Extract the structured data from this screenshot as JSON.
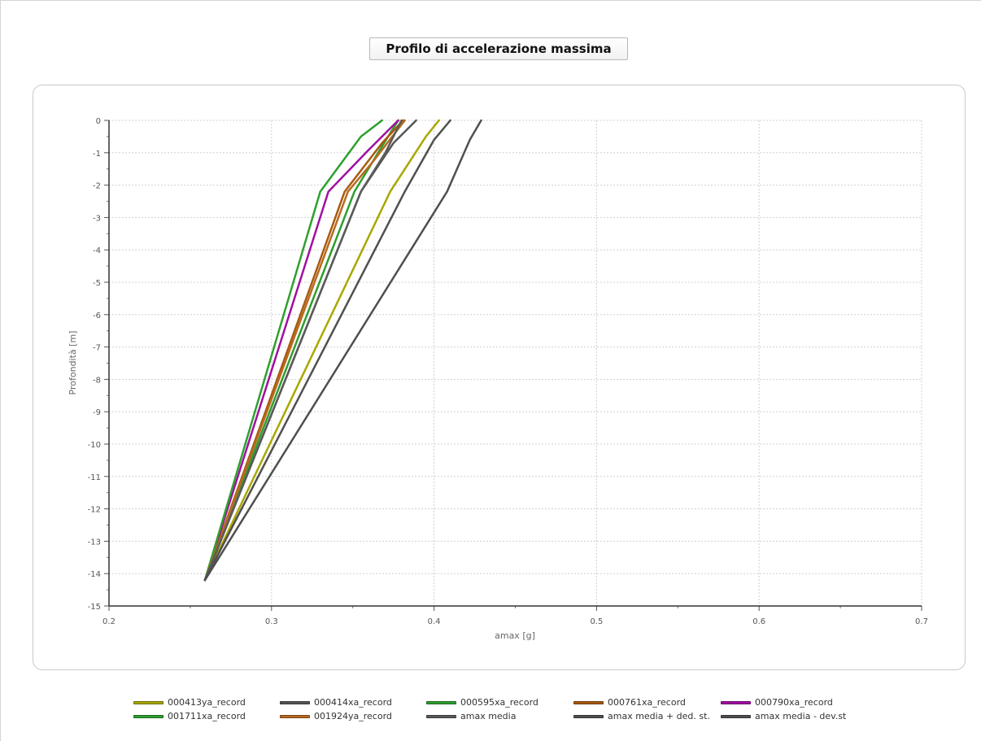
{
  "chart_data": {
    "type": "line",
    "title": "Profilo di accelerazione massima",
    "xlabel": "amax [g]",
    "ylabel": "Profondità [m]",
    "xlim": [
      0.2,
      0.7
    ],
    "ylim": [
      -15,
      0
    ],
    "x_ticks": [
      "0.2",
      "0.3",
      "0.4",
      "0.5",
      "0.6",
      "0.7"
    ],
    "y_ticks": [
      "0",
      "-1",
      "-2",
      "-3",
      "-4",
      "-5",
      "-6",
      "-7",
      "-8",
      "-9",
      "-10",
      "-11",
      "-12",
      "-13",
      "-14",
      "-15"
    ],
    "grid": true,
    "legend_position": "bottom",
    "series": [
      {
        "name": "000413ya_record",
        "color": "#a8a800",
        "x": [
          0.259,
          0.373,
          0.395,
          0.403
        ],
        "y": [
          -14.2,
          -2.2,
          -0.5,
          0
        ]
      },
      {
        "name": "000414xa_record",
        "color": "#555555",
        "x": [
          0.259,
          0.355,
          0.375,
          0.389
        ],
        "y": [
          -14.2,
          -2.2,
          -0.7,
          0
        ]
      },
      {
        "name": "000595xa_record",
        "color": "#2e9e2e",
        "x": [
          0.259,
          0.351,
          0.368,
          0.378
        ],
        "y": [
          -14.2,
          -2.2,
          -0.8,
          0
        ]
      },
      {
        "name": "000761xa_record",
        "color": "#a85a10",
        "x": [
          0.259,
          0.345,
          0.368,
          0.381
        ],
        "y": [
          -14.2,
          -2.2,
          -0.7,
          0
        ]
      },
      {
        "name": "000790xa_record",
        "color": "#a010a0",
        "x": [
          0.259,
          0.335,
          0.36,
          0.378
        ],
        "y": [
          -14.2,
          -2.2,
          -0.9,
          0
        ]
      },
      {
        "name": "001711xa_record",
        "color": "#2ea02e",
        "x": [
          0.259,
          0.33,
          0.355,
          0.368
        ],
        "y": [
          -14.2,
          -2.2,
          -0.5,
          0
        ]
      },
      {
        "name": "001924ya_record",
        "color": "#b86a20",
        "x": [
          0.259,
          0.347,
          0.362,
          0.382
        ],
        "y": [
          -14.2,
          -2.2,
          -1.3,
          0
        ]
      },
      {
        "name": "amax media",
        "color": "#5a5a5a",
        "x": [
          0.259,
          0.355,
          0.37,
          0.38
        ],
        "y": [
          -14.2,
          -2.2,
          -1.0,
          0
        ]
      },
      {
        "name": "amax media + ded. st.",
        "color": "#505050",
        "x": [
          0.259,
          0.382,
          0.4,
          0.41
        ],
        "y": [
          -14.2,
          -2.2,
          -0.6,
          0
        ]
      },
      {
        "name": "amax media - dev.st",
        "color": "#4f4f4f",
        "x": [
          0.259,
          0.408,
          0.422,
          0.429
        ],
        "y": [
          -14.2,
          -2.2,
          -0.6,
          0
        ]
      }
    ]
  }
}
